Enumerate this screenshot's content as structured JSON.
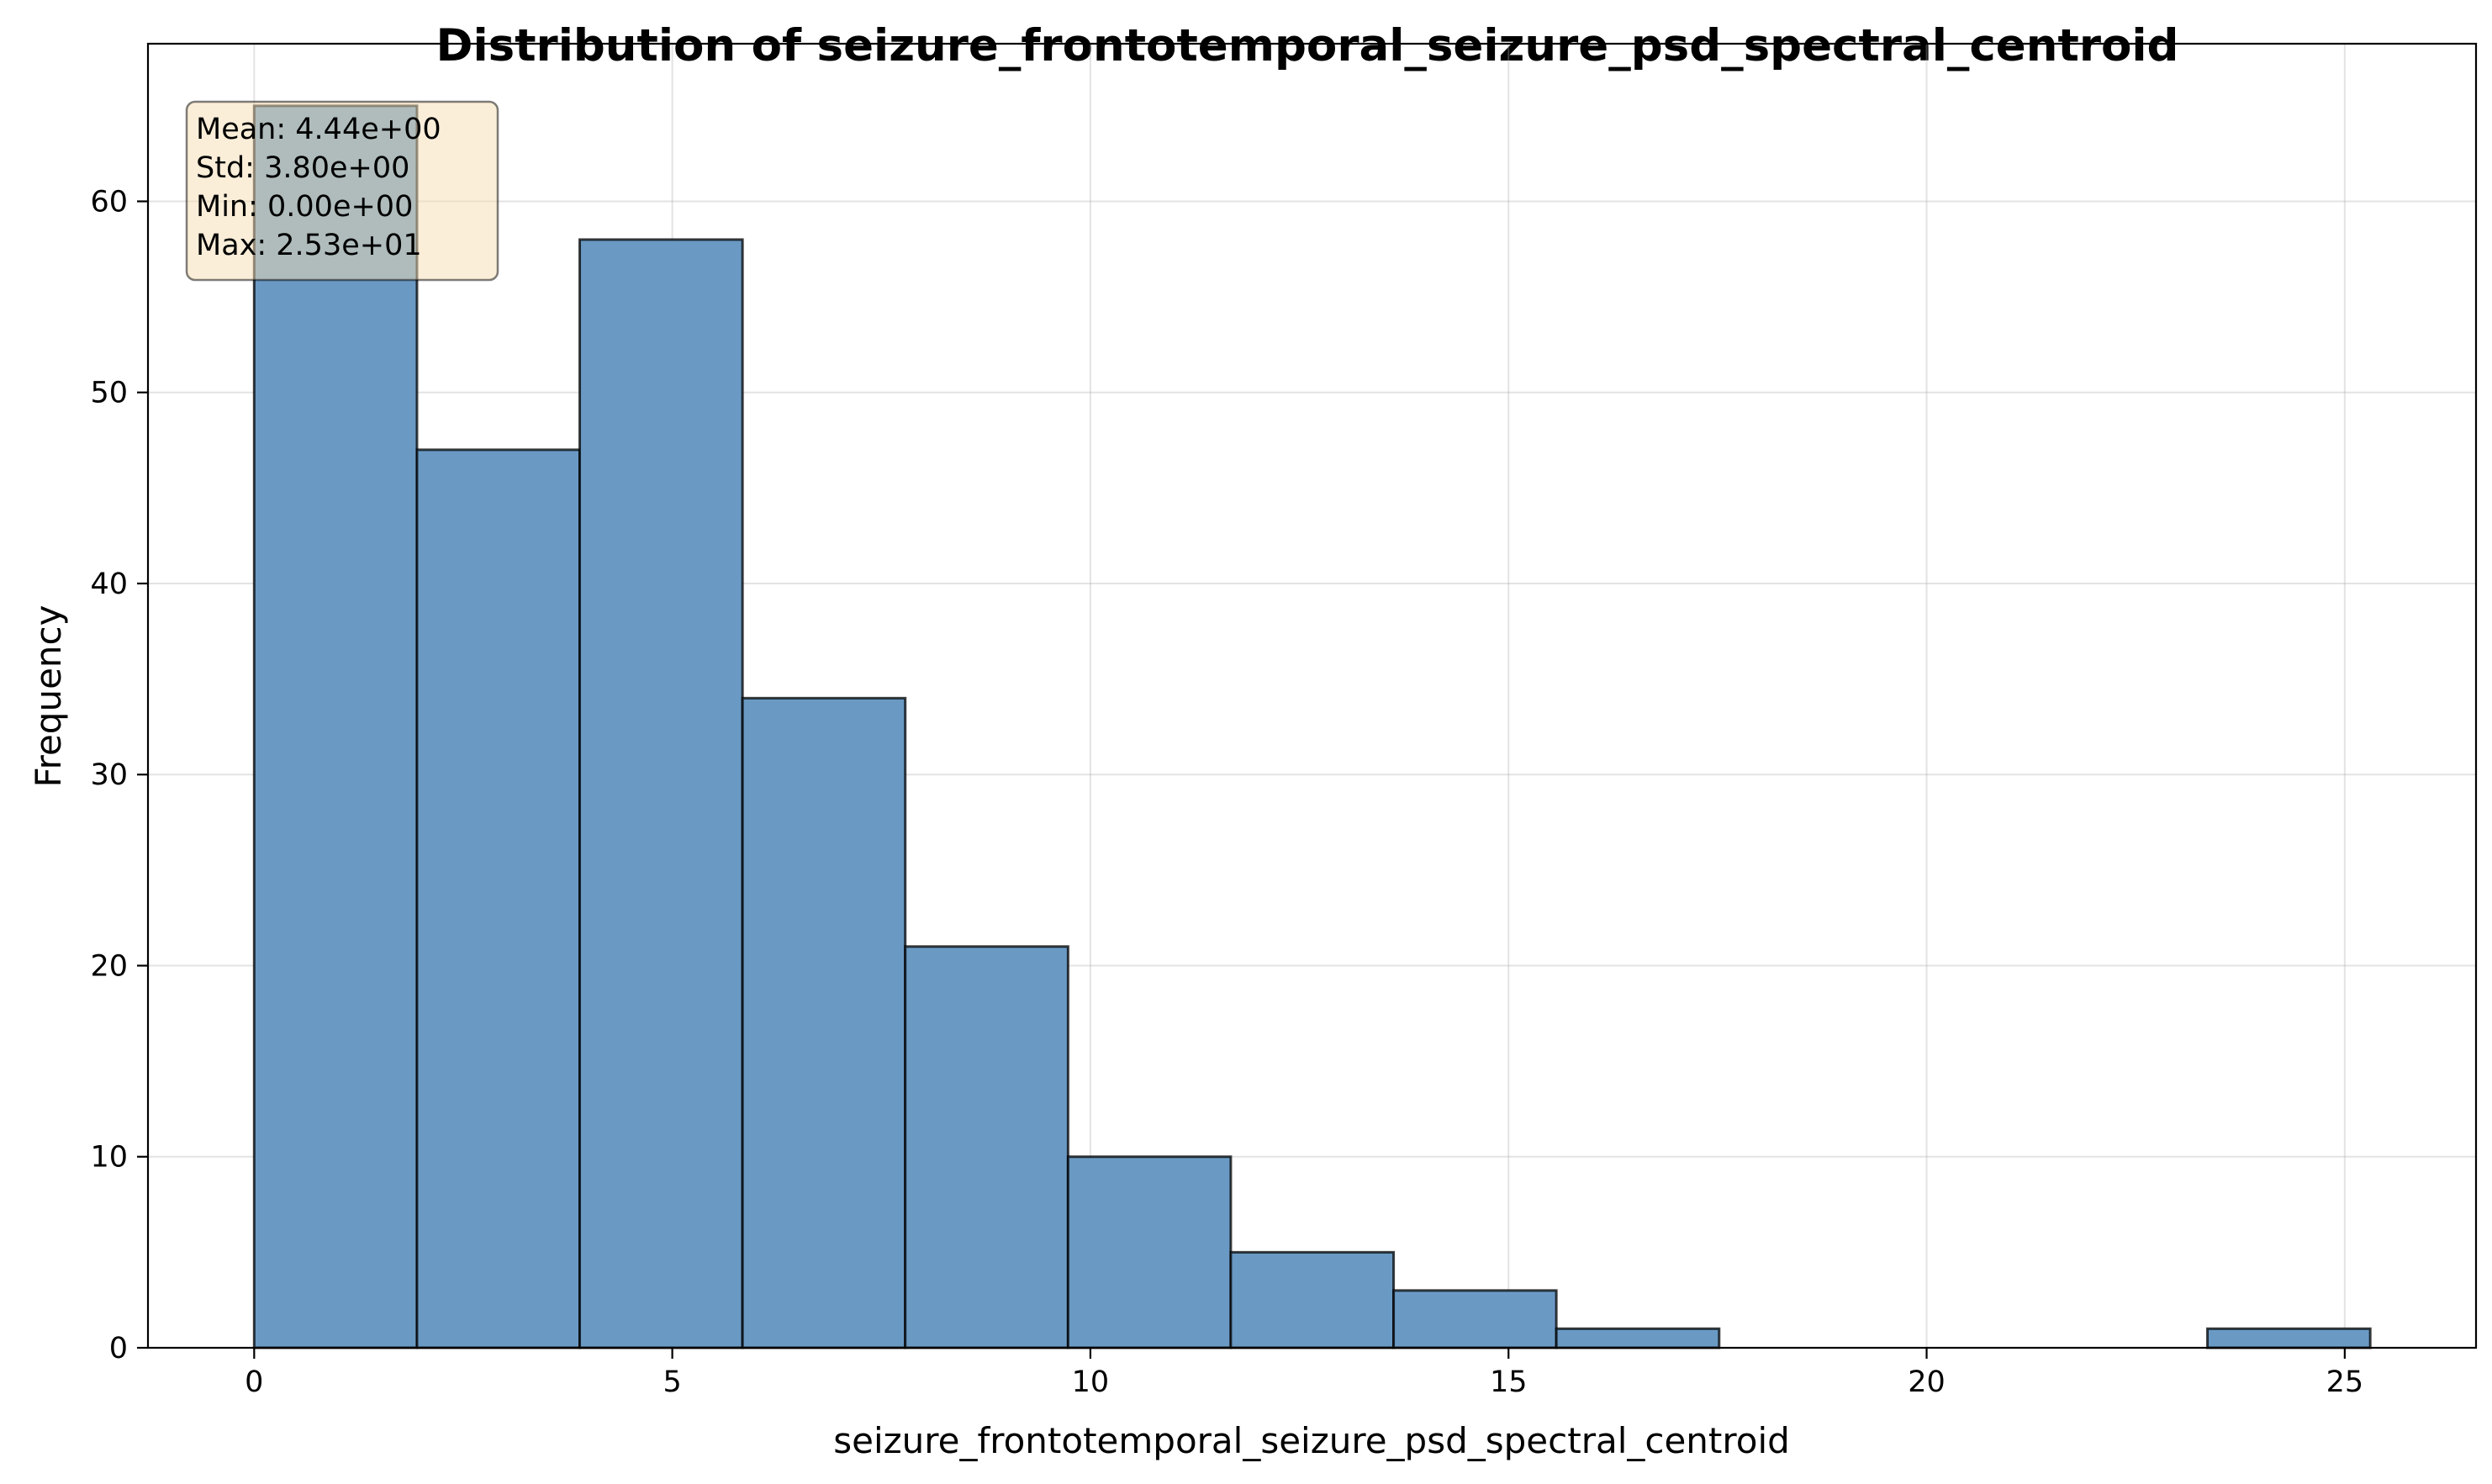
{
  "chart_data": {
    "type": "bar",
    "title": "Distribution of seizure_frontotemporal_seizure_psd_spectral_centroid",
    "xlabel": "seizure_frontotemporal_seizure_psd_spectral_centroid",
    "ylabel": "Frequency",
    "bins": [
      {
        "start": 0.0,
        "end": 1.947,
        "count": 65
      },
      {
        "start": 1.947,
        "end": 3.893,
        "count": 47
      },
      {
        "start": 3.893,
        "end": 5.84,
        "count": 58
      },
      {
        "start": 5.84,
        "end": 7.786,
        "count": 34
      },
      {
        "start": 7.786,
        "end": 9.733,
        "count": 21
      },
      {
        "start": 9.733,
        "end": 11.679,
        "count": 10
      },
      {
        "start": 11.679,
        "end": 13.626,
        "count": 5
      },
      {
        "start": 13.626,
        "end": 15.572,
        "count": 3
      },
      {
        "start": 15.572,
        "end": 17.519,
        "count": 1
      },
      {
        "start": 17.519,
        "end": 19.465,
        "count": 0
      },
      {
        "start": 19.465,
        "end": 21.412,
        "count": 0
      },
      {
        "start": 21.412,
        "end": 23.358,
        "count": 0
      },
      {
        "start": 23.358,
        "end": 25.305,
        "count": 1
      }
    ],
    "xlim": [
      -1.27,
      26.57
    ],
    "ylim": [
      0,
      68.25
    ],
    "xticks": [
      0,
      5,
      10,
      15,
      20,
      25
    ],
    "yticks": [
      0,
      10,
      20,
      30,
      40,
      50,
      60
    ],
    "grid": true,
    "bar_color": "#6a9ac4",
    "edge_color": "#000000",
    "stats_box": {
      "lines": [
        "Mean: 4.44e+00",
        "Std: 3.80e+00",
        "Min: 0.00e+00",
        "Max: 2.53e+01"
      ],
      "background": "#f5deb3",
      "placement": "top-left"
    }
  }
}
